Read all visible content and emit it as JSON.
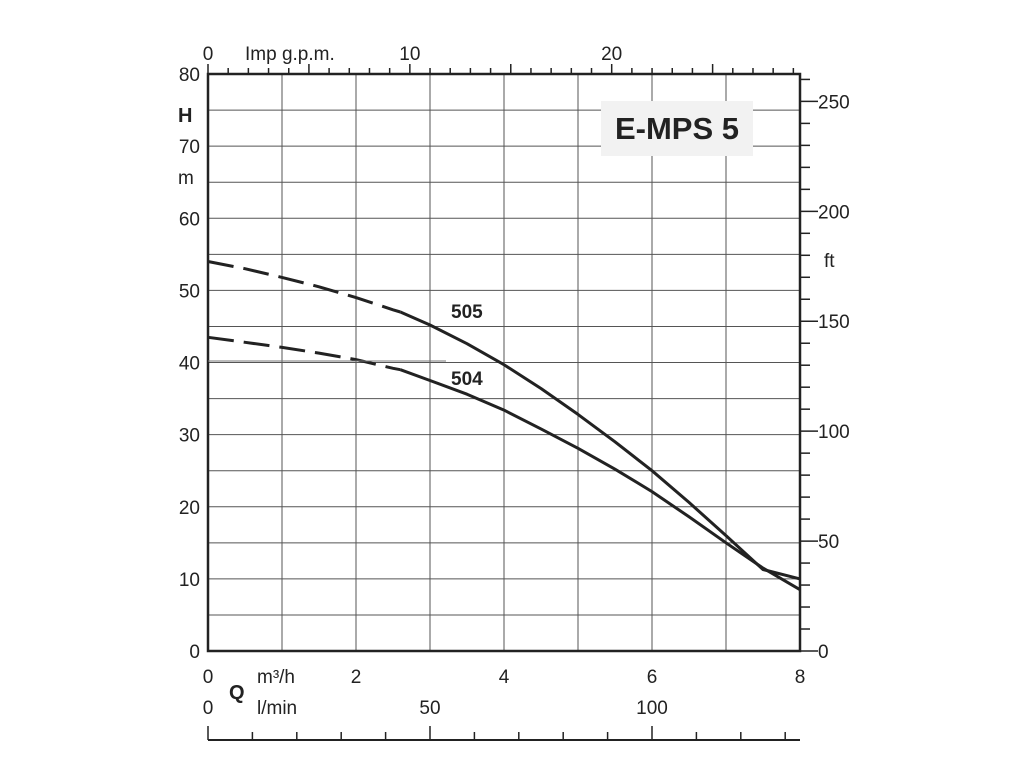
{
  "chart_data": {
    "type": "line",
    "title": "E-MPS 5",
    "x_primary": {
      "label": "m³/h",
      "min": 0,
      "max": 8,
      "ticks": [
        0,
        2,
        4,
        6,
        8
      ]
    },
    "x_secondary": {
      "label": "l/min",
      "ticks": [
        0,
        50,
        100
      ]
    },
    "x_top": {
      "label": "Imp g.p.m.",
      "ticks": [
        0,
        10,
        20
      ]
    },
    "x_symbol": "Q",
    "y_left": {
      "label_symbol": "H",
      "label_unit": "m",
      "min": 0,
      "max": 80,
      "ticks": [
        0,
        10,
        20,
        30,
        40,
        50,
        60,
        70,
        80
      ]
    },
    "y_right": {
      "label": "ft",
      "ticks": [
        0,
        50,
        100,
        150,
        200,
        250
      ]
    },
    "grid": true,
    "series": [
      {
        "name": "505",
        "dashed": {
          "x": [
            0,
            0.5,
            1,
            1.5,
            2,
            2.5,
            2.6
          ],
          "y": [
            54,
            53,
            51.8,
            50.5,
            49,
            47.3,
            47
          ]
        },
        "solid": {
          "x": [
            2.6,
            3,
            3.5,
            4,
            4.5,
            5,
            5.5,
            6,
            6.5,
            7,
            7.5,
            8
          ],
          "y": [
            47,
            45.2,
            42.6,
            39.7,
            36.4,
            32.8,
            29,
            25,
            20.6,
            16,
            11.3,
            10
          ]
        }
      },
      {
        "name": "504",
        "dashed": {
          "x": [
            0,
            0.5,
            1,
            1.5,
            2,
            2.5,
            2.6
          ],
          "y": [
            43.5,
            42.8,
            42.1,
            41.3,
            40.4,
            39.2,
            39
          ]
        },
        "solid": {
          "x": [
            2.6,
            3,
            3.5,
            4,
            4.5,
            5,
            5.5,
            6,
            6.5,
            7,
            7.5,
            8
          ],
          "y": [
            39,
            37.5,
            35.6,
            33.4,
            30.8,
            28.1,
            25.2,
            22.1,
            18.6,
            15,
            11.5,
            8.5
          ]
        }
      }
    ]
  }
}
